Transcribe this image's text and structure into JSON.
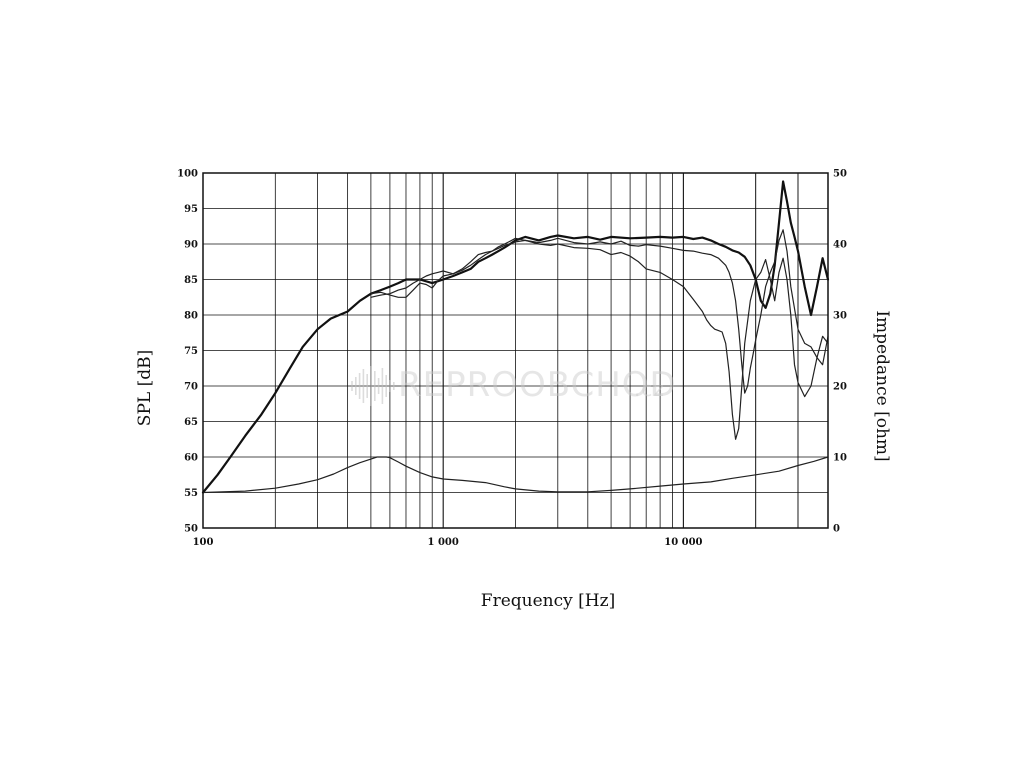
{
  "watermark": "REPROOBCHOD",
  "watermark_suffix": ".cz",
  "chart_data": {
    "type": "line",
    "xlabel": "Frequency [Hz]",
    "ylabel": "SPL [dB]",
    "y2label": "Impedance [ohm]",
    "x_scale": "log",
    "xlim": [
      100,
      40000
    ],
    "ylim": [
      50,
      100
    ],
    "y2lim": [
      0,
      50
    ],
    "grid": true,
    "x_ticks": [
      {
        "value": 100,
        "label": "100"
      },
      {
        "value": 1000,
        "label": "1 000"
      },
      {
        "value": 10000,
        "label": "10 000"
      }
    ],
    "y_ticks": [
      {
        "value": 100,
        "label": "100"
      },
      {
        "value": 95,
        "label": "95"
      },
      {
        "value": 90,
        "label": "90"
      },
      {
        "value": 85,
        "label": "85"
      },
      {
        "value": 80,
        "label": "80"
      },
      {
        "value": 75,
        "label": "75"
      },
      {
        "value": 70,
        "label": "70"
      },
      {
        "value": 65,
        "label": "65"
      },
      {
        "value": 60,
        "label": "60"
      },
      {
        "value": 55,
        "label": "55"
      },
      {
        "value": 50,
        "label": "50"
      }
    ],
    "y2_ticks": [
      {
        "value": 50,
        "label": "50"
      },
      {
        "value": 40,
        "label": "40"
      },
      {
        "value": 30,
        "label": "30"
      },
      {
        "value": 20,
        "label": "20"
      },
      {
        "value": 10,
        "label": "10"
      },
      {
        "value": 0,
        "label": "0"
      }
    ],
    "series": [
      {
        "axis": "left",
        "stroke": "#111111",
        "width": 2.2,
        "x": [
          100,
          115,
          130,
          150,
          175,
          200,
          230,
          260,
          300,
          340,
          400,
          450,
          500,
          550,
          600,
          650,
          700,
          800,
          900,
          1000,
          1100,
          1200,
          1300,
          1400,
          1500,
          1600,
          1700,
          1800,
          1900,
          2000,
          2200,
          2500,
          2800,
          3000,
          3500,
          4000,
          4500,
          5000,
          6000,
          7000,
          8000,
          9000,
          10000,
          11000,
          12000,
          13000,
          14000,
          15000,
          16000,
          17000,
          18000,
          19000,
          20000,
          21000,
          22000,
          23000,
          24000,
          25000,
          26000,
          27000,
          28000,
          29000,
          30000,
          32000,
          34000,
          36000,
          38000,
          40000
        ],
        "y": [
          55,
          57.5,
          60,
          63,
          66,
          69,
          72.5,
          75.5,
          78,
          79.5,
          80.5,
          82,
          83,
          83.5,
          84,
          84.5,
          85,
          85,
          84.5,
          85,
          85.5,
          86,
          86.5,
          87.5,
          88,
          88.5,
          89,
          89.5,
          90,
          90.5,
          91,
          90.5,
          91,
          91.2,
          90.8,
          91,
          90.6,
          91,
          90.8,
          90.9,
          91,
          90.9,
          91,
          90.7,
          90.9,
          90.5,
          90,
          89.6,
          89.1,
          88.8,
          88.2,
          87,
          85,
          82,
          81,
          83,
          87,
          93,
          98.8,
          96,
          93,
          91,
          89,
          84,
          80,
          84,
          88,
          85
        ]
      },
      {
        "axis": "left",
        "stroke": "#222222",
        "width": 1.2,
        "x": [
          500,
          550,
          600,
          650,
          700,
          750,
          800,
          850,
          900,
          950,
          1000,
          1100,
          1200,
          1300,
          1400,
          1500,
          1600,
          1700,
          1800,
          1900,
          2000,
          2200,
          2500,
          2800,
          3000,
          3500,
          4000,
          4500,
          5000,
          5500,
          6000,
          6500,
          7000,
          8000,
          9000,
          10000,
          11000,
          12000,
          13000,
          14000,
          15000,
          15500,
          16000,
          16500,
          17000,
          17500,
          18000,
          18500,
          19000,
          19500,
          20000,
          21000,
          22000,
          23000,
          24000,
          25000,
          26000,
          27000,
          28000,
          30000,
          32000,
          34000,
          36000,
          38000,
          40000
        ],
        "y": [
          82.5,
          82.8,
          83,
          83.5,
          83.8,
          84.5,
          85,
          85.5,
          85.8,
          86,
          86.2,
          85.8,
          86.5,
          87.5,
          88.5,
          88.8,
          89,
          89.4,
          89.8,
          90,
          90.3,
          90.5,
          90.2,
          90.5,
          90.8,
          90.2,
          90,
          90.3,
          90,
          90.4,
          89.8,
          89.7,
          89.9,
          89.7,
          89.4,
          89.1,
          89,
          88.7,
          88.5,
          88,
          87,
          86,
          84.5,
          82,
          78,
          73,
          69,
          70,
          72.5,
          74.5,
          76.5,
          80,
          84,
          86,
          87.5,
          90.5,
          92,
          89,
          84,
          78,
          76,
          75.5,
          74,
          73,
          77
        ]
      },
      {
        "axis": "left",
        "stroke": "#222222",
        "width": 1.2,
        "x": [
          500,
          550,
          600,
          650,
          700,
          750,
          800,
          850,
          900,
          950,
          1000,
          1100,
          1200,
          1300,
          1400,
          1500,
          1600,
          1700,
          1800,
          1900,
          2000,
          2200,
          2500,
          2800,
          3000,
          3500,
          4000,
          4500,
          5000,
          5500,
          6000,
          6500,
          7000,
          8000,
          9000,
          10000,
          11000,
          12000,
          12500,
          13000,
          13500,
          14000,
          14500,
          15000,
          15500,
          16000,
          16500,
          17000,
          17500,
          18000,
          19000,
          20000,
          21000,
          22000,
          23000,
          24000,
          25000,
          26000,
          27000,
          28000,
          29000,
          30000,
          32000,
          34000,
          36000,
          38000,
          40000
        ],
        "y": [
          83,
          83.2,
          82.8,
          82.5,
          82.5,
          83.5,
          84.5,
          84.3,
          83.8,
          84.8,
          85.5,
          85.8,
          86.3,
          87,
          87.8,
          88.5,
          89,
          89.6,
          90,
          90.4,
          90.8,
          90.5,
          90,
          89.8,
          90,
          89.5,
          89.4,
          89.2,
          88.5,
          88.8,
          88.3,
          87.5,
          86.5,
          86,
          85,
          84,
          82.2,
          80.5,
          79.3,
          78.5,
          78,
          77.8,
          77.6,
          76,
          72,
          66,
          62.5,
          64,
          70,
          76,
          82,
          85,
          86,
          87.8,
          85,
          82,
          86,
          88,
          85,
          80,
          73,
          70.5,
          68.5,
          70,
          74,
          77,
          76
        ]
      },
      {
        "axis": "right",
        "stroke": "#222222",
        "width": 1.2,
        "x": [
          100,
          150,
          200,
          250,
          300,
          350,
          400,
          450,
          500,
          530,
          550,
          580,
          600,
          650,
          700,
          800,
          900,
          1000,
          1200,
          1500,
          1800,
          2000,
          2500,
          3000,
          3500,
          4000,
          5000,
          6000,
          8000,
          10000,
          13000,
          16000,
          20000,
          25000,
          30000,
          35000,
          40000
        ],
        "y": [
          5,
          5.2,
          5.6,
          6.2,
          6.8,
          7.6,
          8.5,
          9.2,
          9.7,
          10,
          10,
          10,
          9.9,
          9.3,
          8.7,
          7.8,
          7.2,
          6.9,
          6.7,
          6.4,
          5.8,
          5.5,
          5.2,
          5.1,
          5.1,
          5.1,
          5.3,
          5.5,
          5.9,
          6.2,
          6.5,
          7,
          7.5,
          8,
          8.8,
          9.4,
          10
        ]
      }
    ]
  }
}
